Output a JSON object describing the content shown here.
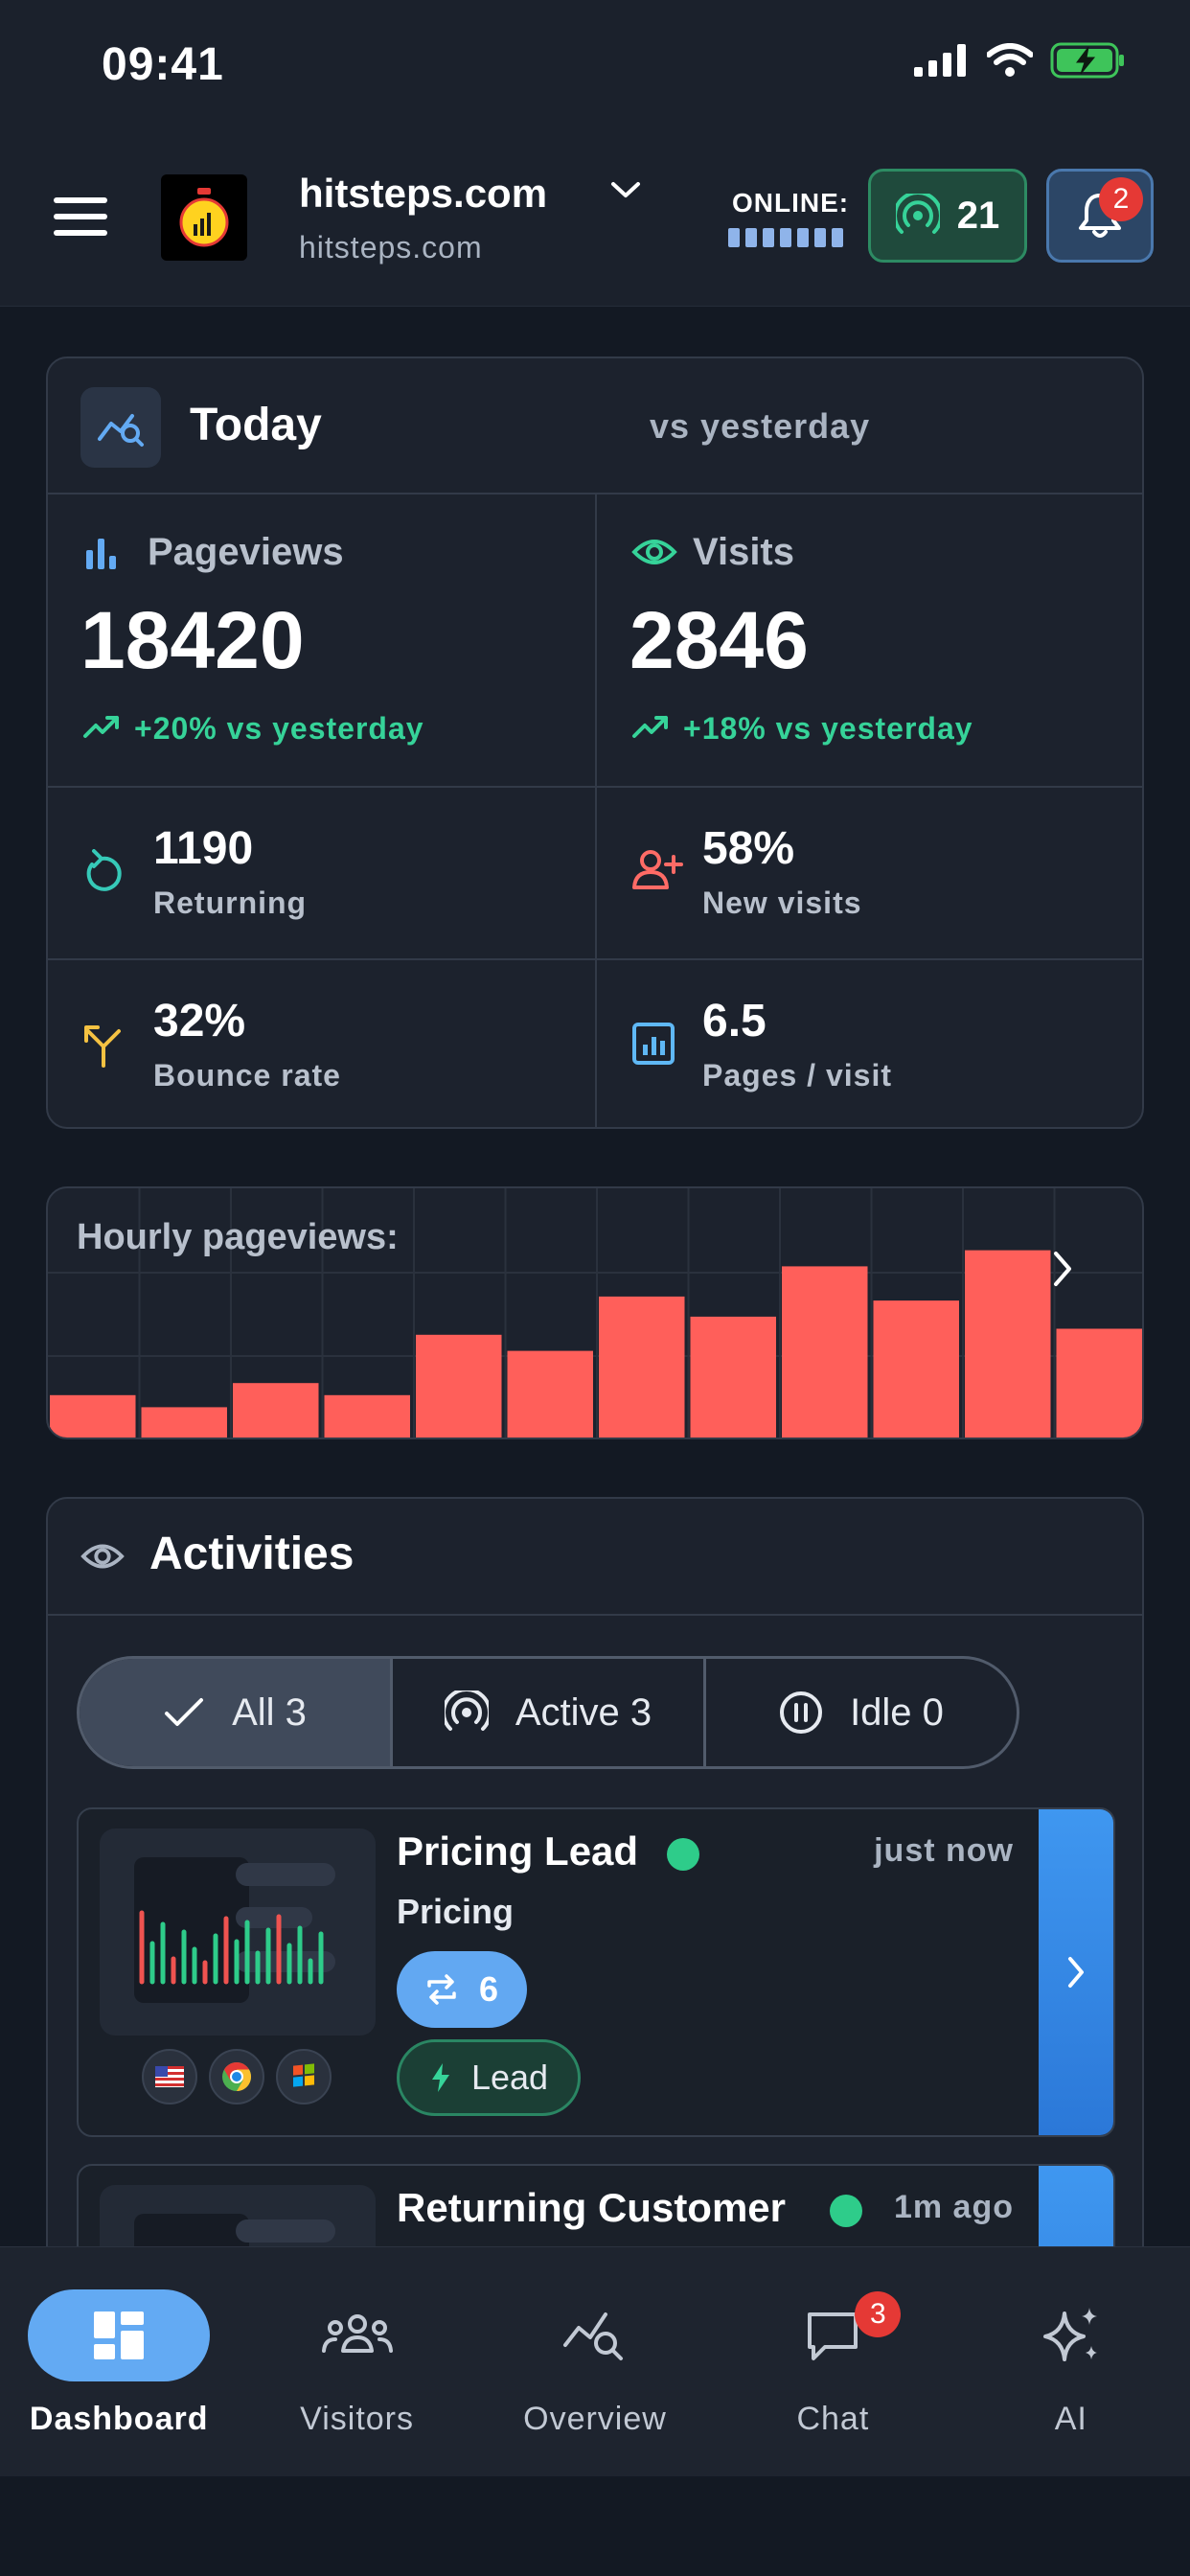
{
  "status_bar": {
    "time": "09:41"
  },
  "header": {
    "site_name": "hitsteps.com",
    "site_domain": "hitsteps.com",
    "online_label": "ONLINE:",
    "online_count": "21",
    "notification_count": "2"
  },
  "today": {
    "title": "Today",
    "compare_label": "vs yesterday",
    "pageviews": {
      "label": "Pageviews",
      "value": "18420",
      "delta": "+20% vs yesterday"
    },
    "visits": {
      "label": "Visits",
      "value": "2846",
      "delta": "+18% vs yesterday"
    },
    "returning": {
      "value": "1190",
      "label": "Returning"
    },
    "new_visits": {
      "value": "58%",
      "label": "New visits"
    },
    "bounce_rate": {
      "value": "32%",
      "label": "Bounce rate"
    },
    "pages_per_visit": {
      "value": "6.5",
      "label": "Pages / visit"
    }
  },
  "hourly": {
    "title": "Hourly pageviews:"
  },
  "chart_data": {
    "type": "bar",
    "title": "Hourly pageviews:",
    "values": [
      22,
      16,
      28,
      22,
      52,
      44,
      71,
      61,
      86,
      69,
      94,
      55
    ],
    "ylim": [
      0,
      100
    ],
    "color": "#ff5f5a"
  },
  "activities": {
    "title": "Activities",
    "filters": [
      {
        "label": "All 3"
      },
      {
        "label": "Active 3"
      },
      {
        "label": "Idle 0"
      }
    ],
    "items": [
      {
        "title": "Pricing Lead",
        "time": "just now",
        "page": "Pricing",
        "count": "6",
        "tag": "Lead"
      },
      {
        "title": "Returning Customer",
        "time": "1m ago"
      }
    ]
  },
  "nav": {
    "items": [
      {
        "label": "Dashboard"
      },
      {
        "label": "Visitors"
      },
      {
        "label": "Overview"
      },
      {
        "label": "Chat",
        "badge": "3"
      },
      {
        "label": "AI"
      }
    ]
  },
  "colors": {
    "background": "#131923",
    "card": "#1c222d",
    "accent_blue": "#63aaf3",
    "accent_green": "#36d399",
    "bar_red": "#ff5f5a",
    "badge_red": "#e53935"
  }
}
